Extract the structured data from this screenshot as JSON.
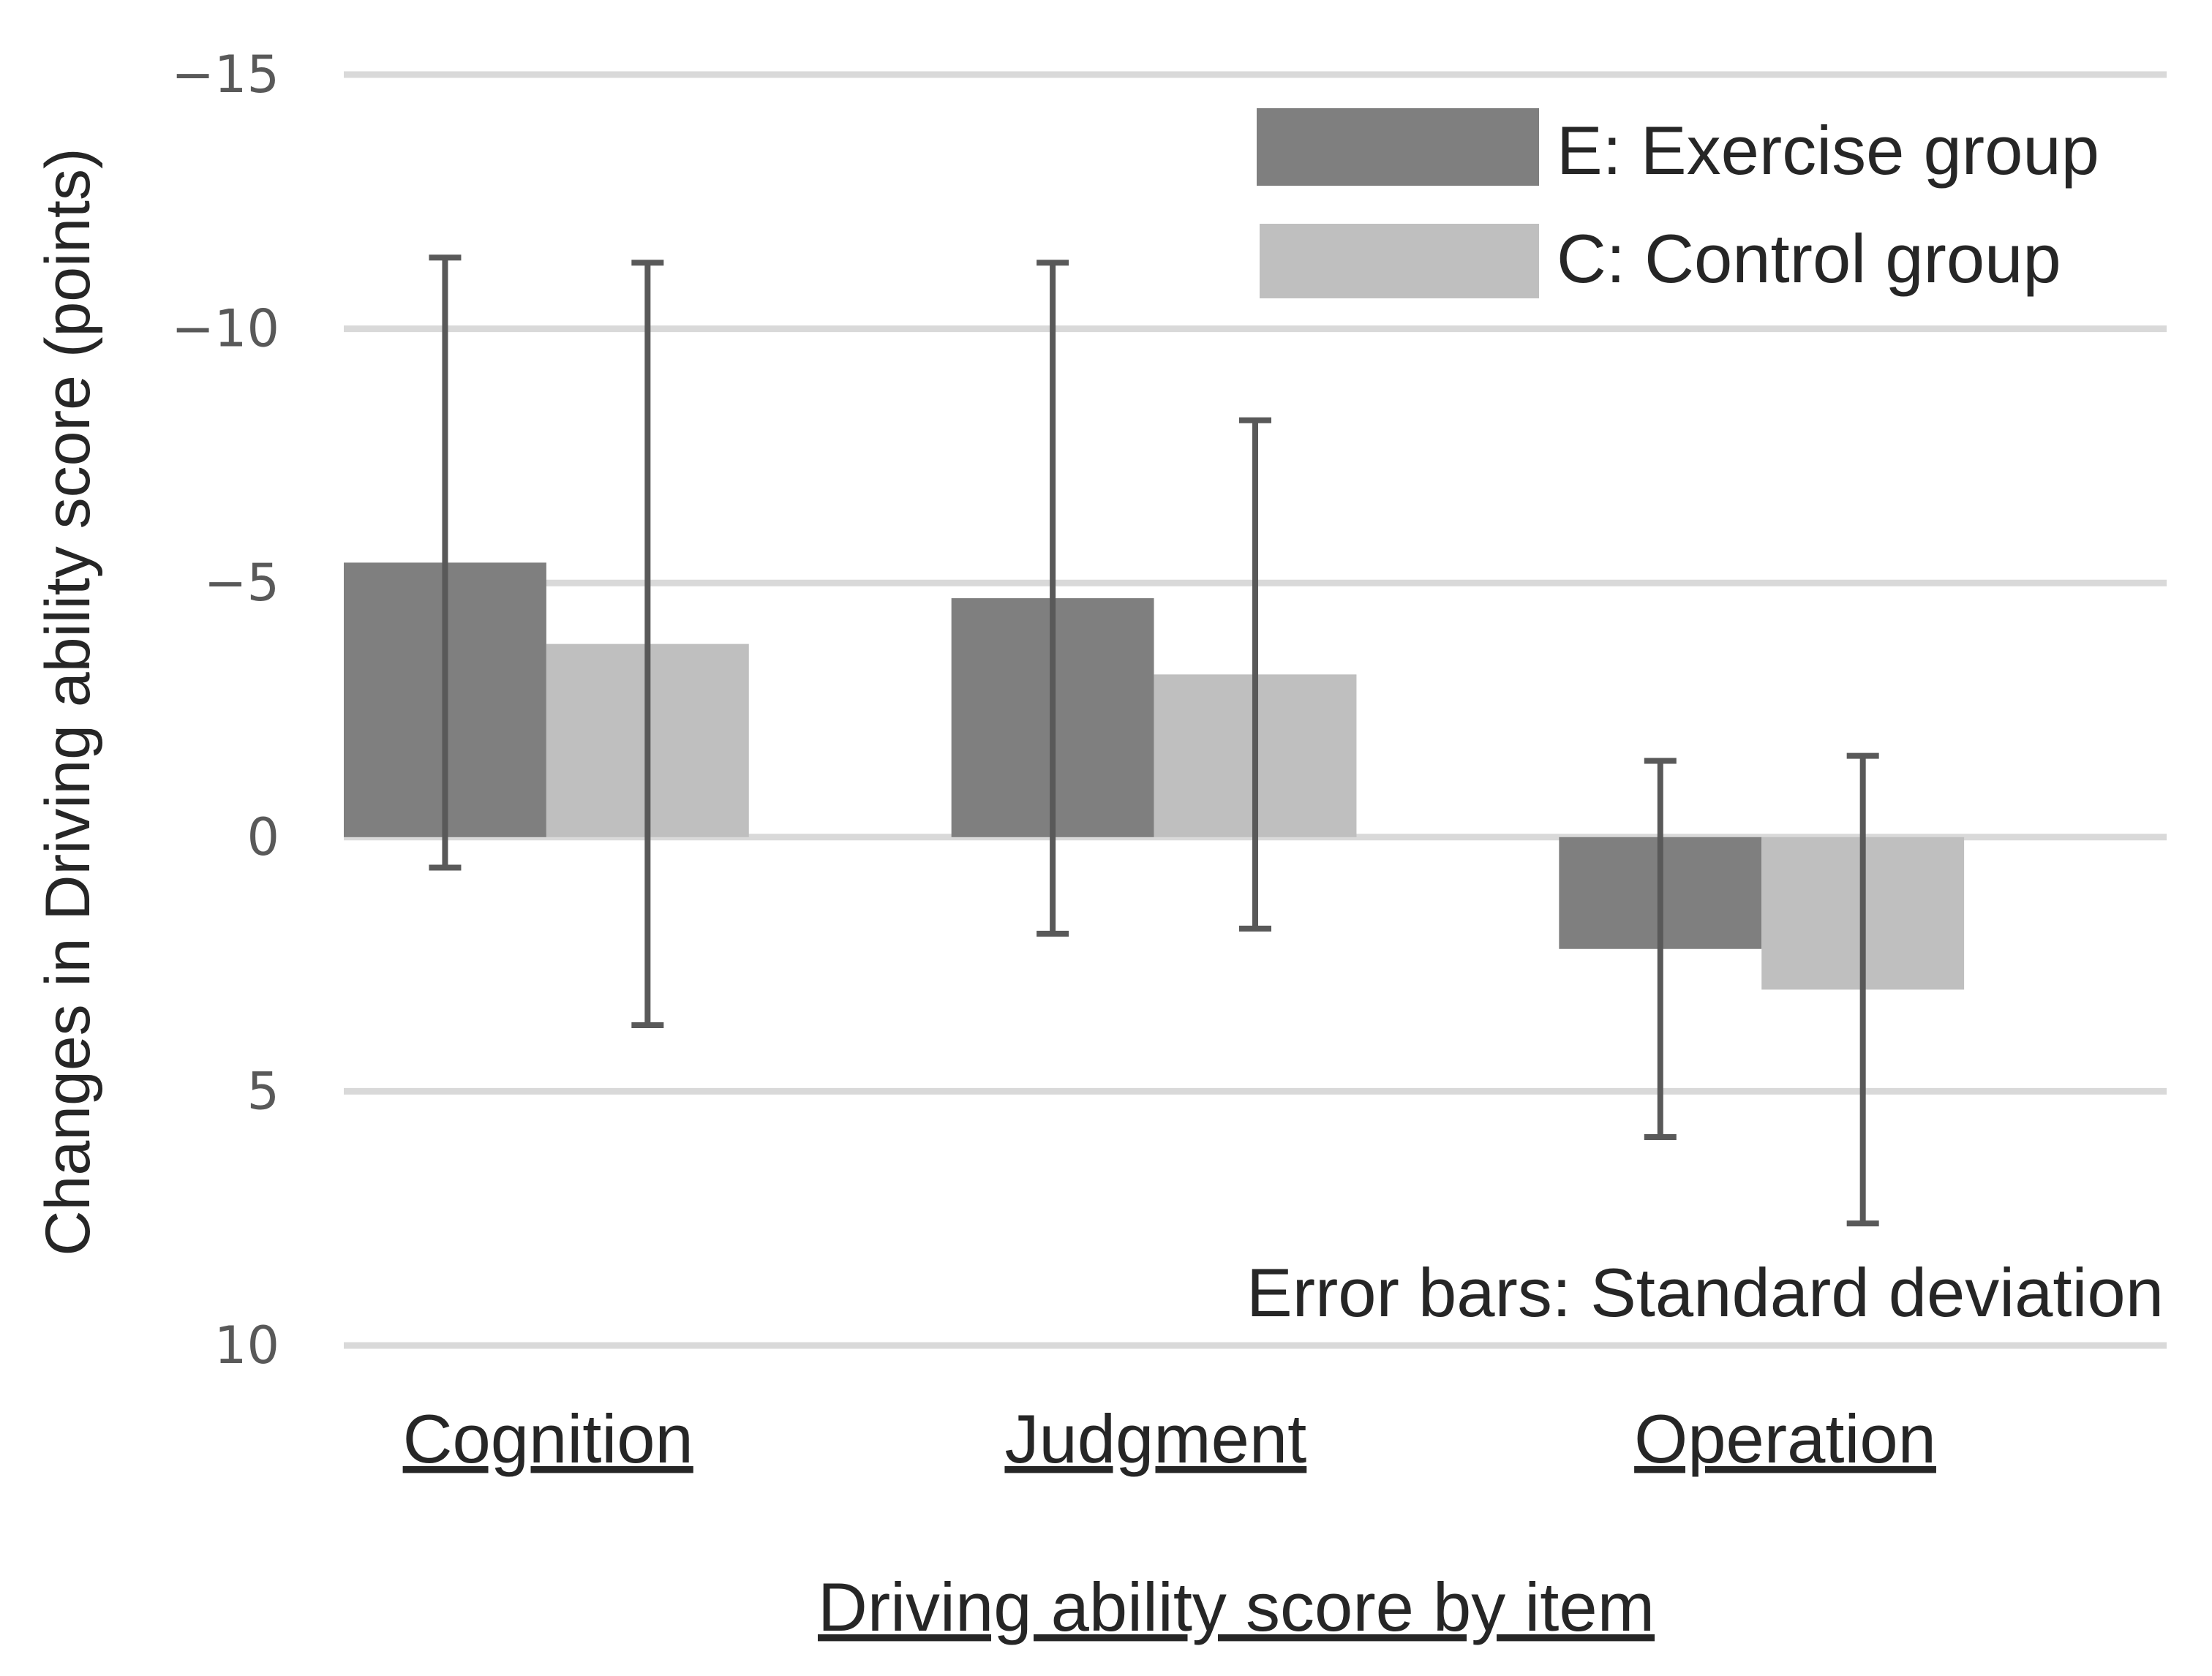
{
  "chart_data": {
    "type": "bar",
    "title": "",
    "xlabel": "Driving ability score by item",
    "ylabel": "Changes in Driving ability score  (points)",
    "categories": [
      "Cognition",
      "Judgment",
      "Operation"
    ],
    "series": [
      {
        "name": "E: Exercise group",
        "color": "#7f7f7f",
        "values": [
          -5.4,
          -4.7,
          2.2
        ],
        "error_sd": [
          6.0,
          6.6,
          3.7
        ]
      },
      {
        "name": "C: Control group",
        "color": "#bfbfbf",
        "values": [
          -3.8,
          -3.2,
          3.0
        ],
        "error_sd": [
          7.5,
          5.0,
          4.6
        ]
      }
    ],
    "ylim": [
      10,
      -15
    ],
    "y_inverted": true,
    "yticks": [
      {
        "value": -15,
        "label": "−15"
      },
      {
        "value": -10,
        "label": "−10"
      },
      {
        "value": -5,
        "label": "−5"
      },
      {
        "value": 0,
        "label": "0"
      },
      {
        "value": 5,
        "label": "5"
      },
      {
        "value": 10,
        "label": "10"
      }
    ],
    "grid": true,
    "legend_position": "top-right",
    "annotation": "Error bars: Standard deviation",
    "gridline_color": "#d9d9d9",
    "errorbar_color": "#595959"
  }
}
